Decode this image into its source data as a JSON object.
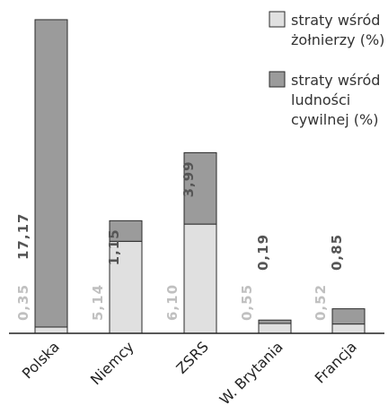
{
  "colors": {
    "soldiers": "#e0e0e0",
    "civilians": "#9b9b9b",
    "outline": "#2a2a2a",
    "label_soldiers": "#c0c0c0",
    "label_civilians": "#555555"
  },
  "legend": [
    {
      "name": "straty wśród żołnierzy (%)",
      "lines": [
        "straty wśród",
        "żołnierzy (%)"
      ],
      "color": "soldiers"
    },
    {
      "name": "straty wśród ludności cywilnej (%)",
      "lines": [
        "straty wśród",
        "ludności",
        "cywilnej (%)"
      ],
      "color": "civilians"
    }
  ],
  "chart_data": {
    "type": "bar",
    "stacked": true,
    "categories": [
      "Polska",
      "Niemcy",
      "ZSRS",
      "W. Brytania",
      "Francja"
    ],
    "series": [
      {
        "name": "straty wśród żołnierzy (%)",
        "values": [
          0.35,
          5.14,
          6.1,
          0.55,
          0.52
        ],
        "labels": [
          "0,35",
          "5,14",
          "6,10",
          "0,55",
          "0,52"
        ]
      },
      {
        "name": "straty wśród ludności cywilnej (%)",
        "values": [
          17.17,
          1.15,
          3.99,
          0.19,
          0.85
        ],
        "labels": [
          "17,17",
          "1,15",
          "3,99",
          "0,19",
          "0,85"
        ]
      }
    ],
    "ylim": [
      0,
      18
    ],
    "grid": false,
    "legend_position": "top-right"
  }
}
